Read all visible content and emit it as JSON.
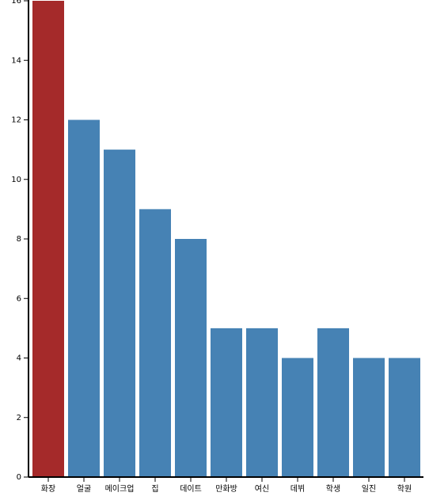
{
  "chart_data": {
    "type": "bar",
    "categories": [
      "화장",
      "얼굴",
      "메이크업",
      "집",
      "데이트",
      "만화방",
      "여신",
      "데뷔",
      "학생",
      "일진",
      "학원"
    ],
    "values": [
      16,
      12,
      11,
      9,
      8,
      5,
      5,
      4,
      5,
      4,
      4
    ],
    "colors": [
      "#a52a2a",
      "#4682b4",
      "#4682b4",
      "#4682b4",
      "#4682b4",
      "#4682b4",
      "#4682b4",
      "#4682b4",
      "#4682b4",
      "#4682b4",
      "#4682b4"
    ],
    "ylim": [
      0,
      16
    ],
    "yticks": [
      0,
      2,
      4,
      6,
      8,
      10,
      12,
      14,
      16
    ]
  }
}
